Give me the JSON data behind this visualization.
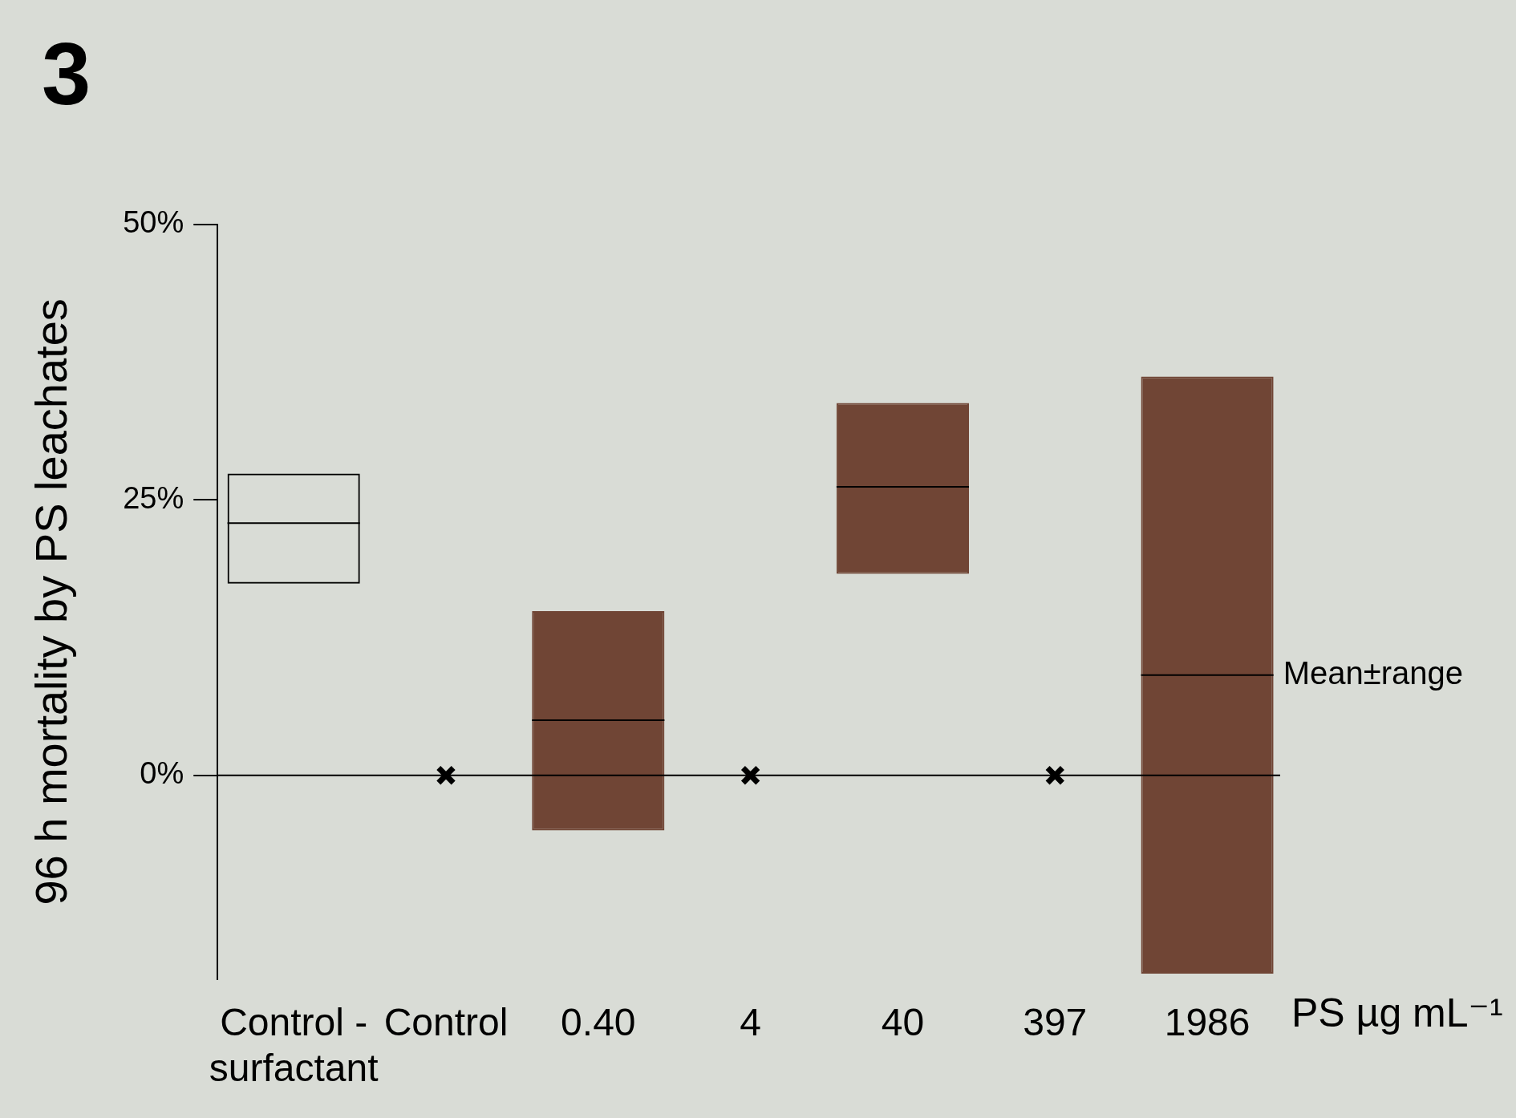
{
  "chart_data": {
    "type": "box",
    "title": "3",
    "ylabel": "96 h mortality by PS leachates",
    "xlabel": "PS µg mL⁻¹",
    "categories": [
      "Control - surfactant",
      "Control",
      "0.40",
      "4",
      "40",
      "397",
      "1986"
    ],
    "ylim": [
      -18.5,
      50
    ],
    "yticks": [
      {
        "value": 0,
        "label": "0%"
      },
      {
        "value": 25,
        "label": "25%"
      },
      {
        "value": 50,
        "label": "50%"
      }
    ],
    "series": [
      {
        "color": "#000000",
        "boxes": [
          {
            "low": 17.4,
            "q1": 17.4,
            "median": 22.9,
            "q3": 27.4,
            "high": 27.4
          },
          null,
          null,
          null,
          null,
          null,
          null
        ]
      },
      {
        "colors": [
          null,
          null,
          "#704535",
          null,
          "#704535",
          null,
          "#704535"
        ],
        "boxes": [
          null,
          null,
          {
            "low": -5,
            "q1": -5,
            "median": 5,
            "q3": 14.9,
            "high": 14.9
          },
          null,
          {
            "low": 18.3,
            "q1": 18.3,
            "median": 26.2,
            "q3": 33.8,
            "high": 33.8
          },
          null,
          {
            "low": -18,
            "q1": -18,
            "median": 9.1,
            "q3": 36.2,
            "high": 36.2
          }
        ]
      },
      {
        "type": "scatter",
        "color": "#000000",
        "x": [
          "Control",
          "4",
          "397"
        ],
        "values": [
          0,
          0,
          0
        ]
      }
    ],
    "marker": "cross",
    "ref_lines": [
      {
        "axis": "y",
        "value": 0,
        "color": "#000000"
      }
    ],
    "annotations": [
      {
        "text": "Mean±range",
        "x": "1986",
        "y": 9.1
      }
    ]
  }
}
